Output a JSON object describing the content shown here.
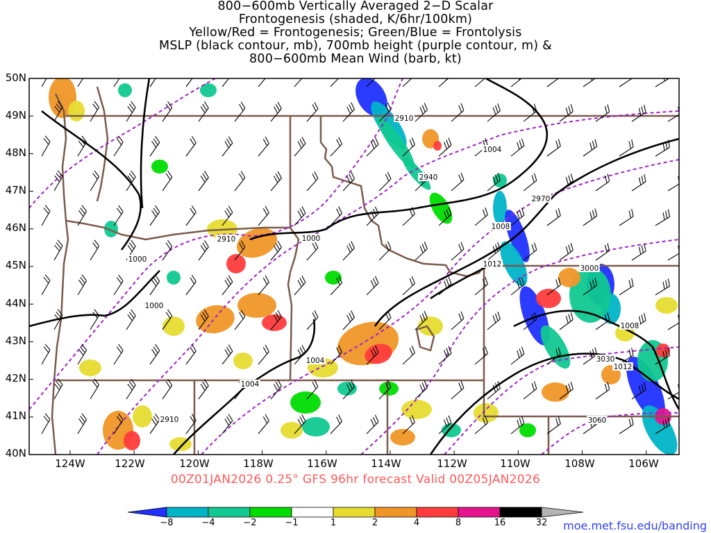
{
  "title": {
    "lines": [
      "800−600mb Vertically Averaged 2−D Scalar",
      "Frontogenesis (shaded, K/6hr/100km)",
      "Yellow/Red = Frontogenesis;  Green/Blue = Frontolysis",
      "MSLP (black contour, mb), 700mb height (purple contour, m) &",
      "800−600mb Mean Wind (barb, kt)"
    ]
  },
  "axes": {
    "lat_labels": [
      "50N",
      "49N",
      "48N",
      "47N",
      "46N",
      "45N",
      "44N",
      "43N",
      "42N",
      "41N",
      "40N"
    ],
    "lon_labels": [
      "124W",
      "122W",
      "120W",
      "118W",
      "116W",
      "114W",
      "112W",
      "110W",
      "108W",
      "106W"
    ],
    "lat_range": [
      40,
      50
    ],
    "lon_range": [
      -125.2,
      -105.1
    ]
  },
  "valid_line": "00Z01JAN2026 0.25° GFS 96hr forecast Valid 00Z05JAN2026",
  "credit": "moe.met.fsu.edu/banding",
  "colorbar": {
    "labels": [
      "−8",
      "−4",
      "−2",
      "−1",
      "1",
      "2",
      "4",
      "8",
      "16",
      "32"
    ],
    "colors": [
      "#2030ff",
      "#00b4c8",
      "#10c890",
      "#00dc00",
      "#ffffff",
      "#e6dc32",
      "#f09628",
      "#ff3c3c",
      "#e6148c",
      "#000000",
      "#b4b4b4"
    ]
  },
  "contour_labels": {
    "mslp": [
      "1004",
      "1008",
      "1012",
      "1000",
      "1000",
      "1000",
      "1004",
      "1004",
      "1008",
      "1012"
    ],
    "height_700mb": [
      "2910",
      "2940",
      "2970",
      "2910",
      "3000",
      "3030",
      "3060",
      "2910"
    ]
  },
  "colors": {
    "mslp_contour": "#000000",
    "height_contour": "#a020c8",
    "borders": "#7a5a4a",
    "valid_text": "#ff5a5a",
    "credit_text": "#3040ff"
  }
}
